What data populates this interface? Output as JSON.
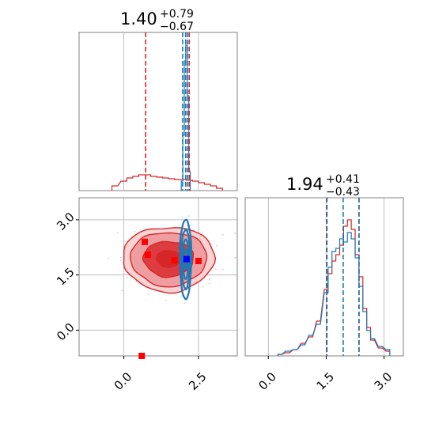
{
  "chart_data": [
    {
      "type": "histogram",
      "panel": "top-left marginal",
      "title_value": "1.40",
      "title_plus": "+0.79",
      "title_minus": "−0.67",
      "xlim": [
        -1.5,
        3.8
      ],
      "ylim": [
        0,
        1.0
      ],
      "grid": true,
      "series": [
        {
          "color": "#d62728",
          "bins": [
            {
              "x": -0.3,
              "y": 0.03
            },
            {
              "x": 0.0,
              "y": 0.06
            },
            {
              "x": 0.2,
              "y": 0.08
            },
            {
              "x": 0.4,
              "y": 0.09
            },
            {
              "x": 0.6,
              "y": 0.1
            },
            {
              "x": 0.8,
              "y": 0.1
            },
            {
              "x": 1.0,
              "y": 0.09
            },
            {
              "x": 1.2,
              "y": 0.085
            },
            {
              "x": 1.4,
              "y": 0.08
            },
            {
              "x": 1.6,
              "y": 0.075
            },
            {
              "x": 1.8,
              "y": 0.07
            },
            {
              "x": 2.0,
              "y": 0.07
            },
            {
              "x": 2.2,
              "y": 0.065
            },
            {
              "x": 2.4,
              "y": 0.06
            },
            {
              "x": 2.6,
              "y": 0.05
            },
            {
              "x": 2.8,
              "y": 0.04
            },
            {
              "x": 3.0,
              "y": 0.03
            },
            {
              "x": 3.2,
              "y": 0.015
            }
          ],
          "quantiles": [
            0.73,
            2.19
          ]
        },
        {
          "color": "#1f77b4",
          "bins": [
            {
              "x": 1.95,
              "y": 0.06
            },
            {
              "x": 2.0,
              "y": 0.35
            },
            {
              "x": 2.05,
              "y": 0.82
            },
            {
              "x": 2.1,
              "y": 0.92
            },
            {
              "x": 2.15,
              "y": 0.6
            },
            {
              "x": 2.2,
              "y": 0.12
            }
          ],
          "quantiles": [
            1.97,
            2.07,
            2.13
          ]
        }
      ]
    },
    {
      "type": "histogram",
      "panel": "bottom-right marginal",
      "title_value": "1.94",
      "title_plus": "+0.41",
      "title_minus": "−0.43",
      "xlim": [
        -0.6,
        3.5
      ],
      "ylim": [
        0,
        1.0
      ],
      "xticks": [
        "0.0",
        "1.5",
        "3.0"
      ],
      "grid": true,
      "series": [
        {
          "color": "#d62728",
          "bins": [
            {
              "x": 0.3,
              "y": 0.01
            },
            {
              "x": 0.5,
              "y": 0.02
            },
            {
              "x": 0.7,
              "y": 0.04
            },
            {
              "x": 0.9,
              "y": 0.08
            },
            {
              "x": 1.1,
              "y": 0.12
            },
            {
              "x": 1.3,
              "y": 0.22
            },
            {
              "x": 1.5,
              "y": 0.42
            },
            {
              "x": 1.6,
              "y": 0.52
            },
            {
              "x": 1.7,
              "y": 0.6
            },
            {
              "x": 1.8,
              "y": 0.64
            },
            {
              "x": 1.9,
              "y": 0.7
            },
            {
              "x": 2.0,
              "y": 0.82
            },
            {
              "x": 2.1,
              "y": 0.86
            },
            {
              "x": 2.2,
              "y": 0.8
            },
            {
              "x": 2.3,
              "y": 0.64
            },
            {
              "x": 2.4,
              "y": 0.5
            },
            {
              "x": 2.5,
              "y": 0.3
            },
            {
              "x": 2.6,
              "y": 0.18
            },
            {
              "x": 2.7,
              "y": 0.1
            },
            {
              "x": 2.9,
              "y": 0.05
            },
            {
              "x": 3.1,
              "y": 0.03
            }
          ],
          "quantiles": [
            1.51,
            2.35
          ]
        },
        {
          "color": "#1f77b4",
          "bins": [
            {
              "x": 0.3,
              "y": 0.01
            },
            {
              "x": 0.5,
              "y": 0.03
            },
            {
              "x": 0.7,
              "y": 0.04
            },
            {
              "x": 0.9,
              "y": 0.07
            },
            {
              "x": 1.1,
              "y": 0.13
            },
            {
              "x": 1.3,
              "y": 0.2
            },
            {
              "x": 1.5,
              "y": 0.4
            },
            {
              "x": 1.6,
              "y": 0.56
            },
            {
              "x": 1.7,
              "y": 0.66
            },
            {
              "x": 1.8,
              "y": 0.68
            },
            {
              "x": 1.9,
              "y": 0.74
            },
            {
              "x": 2.0,
              "y": 0.72
            },
            {
              "x": 2.1,
              "y": 0.78
            },
            {
              "x": 2.2,
              "y": 0.74
            },
            {
              "x": 2.3,
              "y": 0.62
            },
            {
              "x": 2.4,
              "y": 0.44
            },
            {
              "x": 2.5,
              "y": 0.28
            },
            {
              "x": 2.6,
              "y": 0.16
            },
            {
              "x": 2.7,
              "y": 0.11
            },
            {
              "x": 2.9,
              "y": 0.06
            },
            {
              "x": 3.1,
              "y": 0.04
            }
          ],
          "quantiles": [
            1.52,
            1.94,
            2.35
          ]
        }
      ]
    },
    {
      "type": "contour",
      "panel": "bottom-left 2D",
      "xlim": [
        -1.5,
        3.8
      ],
      "ylim": [
        -0.7,
        3.6
      ],
      "xticks": [
        "0.0",
        "2.5"
      ],
      "yticks": [
        "0.0",
        "1.5",
        "3.0"
      ],
      "grid": true,
      "series": [
        {
          "color": "#d62728",
          "center": [
            1.4,
            1.94
          ],
          "spread": [
            0.73,
            0.42
          ]
        },
        {
          "color": "#1f77b4",
          "center": [
            2.07,
            1.94
          ],
          "spread": [
            0.08,
            0.45
          ]
        }
      ],
      "markers_red": [
        [
          0.7,
          2.4
        ],
        [
          0.8,
          2.05
        ],
        [
          1.7,
          1.9
        ],
        [
          2.5,
          1.88
        ],
        [
          0.6,
          -0.7
        ]
      ],
      "marker_blue": [
        2.1,
        1.93
      ]
    }
  ]
}
